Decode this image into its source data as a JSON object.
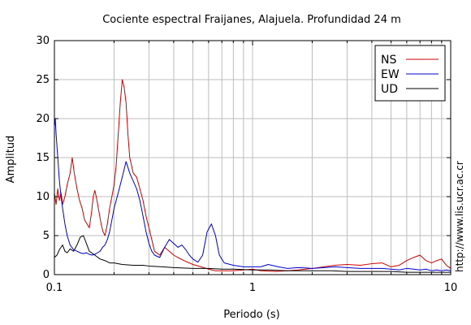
{
  "chart_data": {
    "type": "line",
    "title": "Cociente espectral Fraijanes, Alajuela. Profundidad 24 m",
    "xlabel": "Periodo (s)",
    "ylabel": "Amplitud",
    "xscale": "log",
    "xlim": [
      0.1,
      10
    ],
    "ylim": [
      0,
      30
    ],
    "grid": true,
    "legend_position": "top-right",
    "x_ticks": [
      {
        "value": 0.1,
        "label": "0.1"
      },
      {
        "value": 1,
        "label": "1"
      },
      {
        "value": 10,
        "label": "10"
      }
    ],
    "y_ticks": [
      {
        "value": 0,
        "label": "0"
      },
      {
        "value": 5,
        "label": "5"
      },
      {
        "value": 10,
        "label": "10"
      },
      {
        "value": 15,
        "label": "15"
      },
      {
        "value": 20,
        "label": "20"
      },
      {
        "value": 25,
        "label": "25"
      },
      {
        "value": 30,
        "label": "30"
      }
    ],
    "side_note": "http://www.lis.ucr.ac.cr",
    "series": [
      {
        "name": "NS",
        "color": "#cc0000",
        "points": [
          [
            0.1,
            10.5
          ],
          [
            0.102,
            9.0
          ],
          [
            0.104,
            11.0
          ],
          [
            0.106,
            9.5
          ],
          [
            0.108,
            10.5
          ],
          [
            0.11,
            9.0
          ],
          [
            0.113,
            10.0
          ],
          [
            0.116,
            11.5
          ],
          [
            0.12,
            13.0
          ],
          [
            0.123,
            15.0
          ],
          [
            0.126,
            13.0
          ],
          [
            0.13,
            11.0
          ],
          [
            0.134,
            9.5
          ],
          [
            0.138,
            8.5
          ],
          [
            0.142,
            7.0
          ],
          [
            0.146,
            6.5
          ],
          [
            0.15,
            6.0
          ],
          [
            0.154,
            8.0
          ],
          [
            0.157,
            10.0
          ],
          [
            0.16,
            10.8
          ],
          [
            0.164,
            9.5
          ],
          [
            0.168,
            8.0
          ],
          [
            0.172,
            6.5
          ],
          [
            0.176,
            5.5
          ],
          [
            0.18,
            5.0
          ],
          [
            0.185,
            6.5
          ],
          [
            0.19,
            8.5
          ],
          [
            0.195,
            10.0
          ],
          [
            0.2,
            11.5
          ],
          [
            0.205,
            14.0
          ],
          [
            0.21,
            18.0
          ],
          [
            0.215,
            22.0
          ],
          [
            0.22,
            25.0
          ],
          [
            0.225,
            24.0
          ],
          [
            0.23,
            22.0
          ],
          [
            0.235,
            18.0
          ],
          [
            0.24,
            15.0
          ],
          [
            0.25,
            13.0
          ],
          [
            0.26,
            12.5
          ],
          [
            0.27,
            11.0
          ],
          [
            0.28,
            9.5
          ],
          [
            0.29,
            7.5
          ],
          [
            0.3,
            6.0
          ],
          [
            0.31,
            4.5
          ],
          [
            0.32,
            3.0
          ],
          [
            0.34,
            2.5
          ],
          [
            0.36,
            3.5
          ],
          [
            0.38,
            3.0
          ],
          [
            0.4,
            2.5
          ],
          [
            0.42,
            2.2
          ],
          [
            0.45,
            1.8
          ],
          [
            0.5,
            1.3
          ],
          [
            0.55,
            1.0
          ],
          [
            0.6,
            0.7
          ],
          [
            0.65,
            0.5
          ],
          [
            0.7,
            0.5
          ],
          [
            0.8,
            0.5
          ],
          [
            0.9,
            0.6
          ],
          [
            1.0,
            0.7
          ],
          [
            1.1,
            0.5
          ],
          [
            1.3,
            0.4
          ],
          [
            1.5,
            0.5
          ],
          [
            1.7,
            0.6
          ],
          [
            2.0,
            0.8
          ],
          [
            2.3,
            1.0
          ],
          [
            2.6,
            1.2
          ],
          [
            3.0,
            1.3
          ],
          [
            3.5,
            1.2
          ],
          [
            4.0,
            1.4
          ],
          [
            4.5,
            1.5
          ],
          [
            5.0,
            1.0
          ],
          [
            5.5,
            1.2
          ],
          [
            6.0,
            1.8
          ],
          [
            6.5,
            2.2
          ],
          [
            7.0,
            2.5
          ],
          [
            7.5,
            1.8
          ],
          [
            8.0,
            1.5
          ],
          [
            8.5,
            1.8
          ],
          [
            9.0,
            2.0
          ],
          [
            9.5,
            1.2
          ],
          [
            10.0,
            0.8
          ]
        ]
      },
      {
        "name": "EW",
        "color": "#0000cc",
        "points": [
          [
            0.1,
            19.0
          ],
          [
            0.101,
            20.0
          ],
          [
            0.102,
            18.0
          ],
          [
            0.104,
            15.0
          ],
          [
            0.106,
            12.0
          ],
          [
            0.108,
            10.0
          ],
          [
            0.11,
            8.5
          ],
          [
            0.113,
            6.5
          ],
          [
            0.116,
            5.0
          ],
          [
            0.12,
            3.8
          ],
          [
            0.125,
            3.2
          ],
          [
            0.13,
            3.0
          ],
          [
            0.135,
            2.8
          ],
          [
            0.14,
            2.7
          ],
          [
            0.145,
            2.8
          ],
          [
            0.15,
            2.6
          ],
          [
            0.155,
            2.5
          ],
          [
            0.16,
            2.6
          ],
          [
            0.165,
            2.8
          ],
          [
            0.17,
            3.0
          ],
          [
            0.175,
            3.5
          ],
          [
            0.18,
            3.8
          ],
          [
            0.185,
            4.5
          ],
          [
            0.19,
            5.5
          ],
          [
            0.195,
            7.0
          ],
          [
            0.2,
            8.5
          ],
          [
            0.21,
            10.5
          ],
          [
            0.22,
            12.5
          ],
          [
            0.23,
            14.5
          ],
          [
            0.24,
            13.0
          ],
          [
            0.25,
            12.0
          ],
          [
            0.26,
            11.0
          ],
          [
            0.27,
            9.5
          ],
          [
            0.28,
            7.5
          ],
          [
            0.29,
            5.5
          ],
          [
            0.3,
            4.0
          ],
          [
            0.31,
            3.0
          ],
          [
            0.32,
            2.5
          ],
          [
            0.34,
            2.2
          ],
          [
            0.36,
            3.5
          ],
          [
            0.38,
            4.5
          ],
          [
            0.4,
            4.0
          ],
          [
            0.42,
            3.5
          ],
          [
            0.44,
            3.8
          ],
          [
            0.46,
            3.2
          ],
          [
            0.48,
            2.5
          ],
          [
            0.5,
            2.0
          ],
          [
            0.53,
            1.6
          ],
          [
            0.56,
            2.5
          ],
          [
            0.59,
            5.5
          ],
          [
            0.62,
            6.5
          ],
          [
            0.65,
            5.0
          ],
          [
            0.68,
            2.5
          ],
          [
            0.72,
            1.5
          ],
          [
            0.8,
            1.2
          ],
          [
            0.9,
            1.0
          ],
          [
            1.0,
            1.0
          ],
          [
            1.1,
            1.0
          ],
          [
            1.2,
            1.3
          ],
          [
            1.35,
            1.0
          ],
          [
            1.5,
            0.8
          ],
          [
            1.7,
            0.9
          ],
          [
            2.0,
            0.8
          ],
          [
            2.3,
            0.9
          ],
          [
            2.6,
            1.0
          ],
          [
            3.0,
            0.9
          ],
          [
            3.5,
            0.8
          ],
          [
            4.0,
            0.8
          ],
          [
            4.5,
            0.8
          ],
          [
            5.0,
            0.7
          ],
          [
            5.5,
            0.6
          ],
          [
            6.0,
            0.8
          ],
          [
            6.5,
            0.7
          ],
          [
            7.0,
            0.6
          ],
          [
            7.5,
            0.7
          ],
          [
            8.0,
            0.5
          ],
          [
            8.5,
            0.6
          ],
          [
            9.0,
            0.5
          ],
          [
            9.5,
            0.6
          ],
          [
            10.0,
            0.5
          ]
        ]
      },
      {
        "name": "UD",
        "color": "#000000",
        "points": [
          [
            0.1,
            2.2
          ],
          [
            0.103,
            2.5
          ],
          [
            0.106,
            3.2
          ],
          [
            0.11,
            3.8
          ],
          [
            0.113,
            3.0
          ],
          [
            0.116,
            2.8
          ],
          [
            0.12,
            3.3
          ],
          [
            0.125,
            3.0
          ],
          [
            0.13,
            3.8
          ],
          [
            0.135,
            4.8
          ],
          [
            0.14,
            5.0
          ],
          [
            0.145,
            4.0
          ],
          [
            0.15,
            3.0
          ],
          [
            0.16,
            2.5
          ],
          [
            0.17,
            2.0
          ],
          [
            0.18,
            1.8
          ],
          [
            0.19,
            1.5
          ],
          [
            0.2,
            1.5
          ],
          [
            0.22,
            1.3
          ],
          [
            0.25,
            1.2
          ],
          [
            0.28,
            1.2
          ],
          [
            0.3,
            1.1
          ],
          [
            0.35,
            1.0
          ],
          [
            0.4,
            0.9
          ],
          [
            0.5,
            0.8
          ],
          [
            0.6,
            0.8
          ],
          [
            0.7,
            0.7
          ],
          [
            0.8,
            0.7
          ],
          [
            1.0,
            0.6
          ],
          [
            1.2,
            0.6
          ],
          [
            1.5,
            0.5
          ],
          [
            2.0,
            0.5
          ],
          [
            2.5,
            0.5
          ],
          [
            3.0,
            0.4
          ],
          [
            4.0,
            0.4
          ],
          [
            5.0,
            0.4
          ],
          [
            6.0,
            0.3
          ],
          [
            7.0,
            0.3
          ],
          [
            8.0,
            0.3
          ],
          [
            9.0,
            0.3
          ],
          [
            10.0,
            0.3
          ]
        ]
      }
    ]
  }
}
